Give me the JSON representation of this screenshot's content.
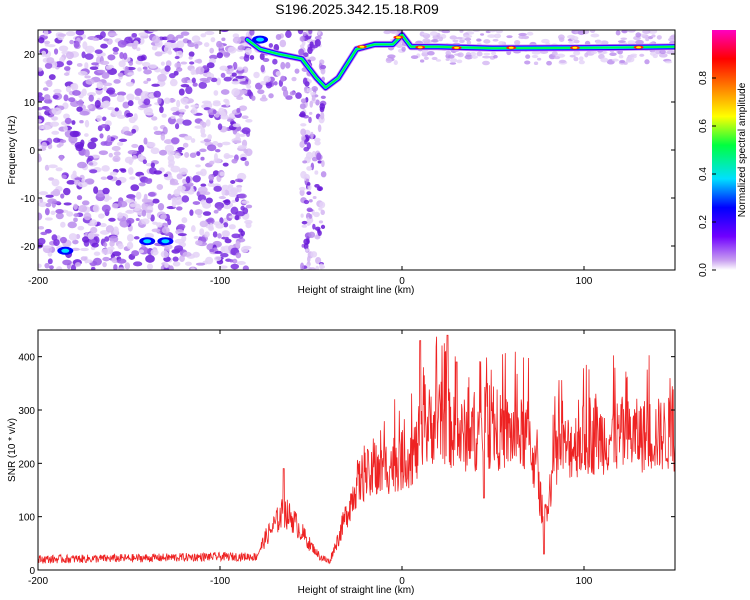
{
  "chart_data": [
    {
      "type": "heatmap",
      "title": "S196.2025.342.15.18.R09",
      "xlabel": "Height of straight line (km)",
      "ylabel": "Frequency (Hz)",
      "xlim": [
        -200,
        150
      ],
      "ylim": [
        -25,
        25
      ],
      "x_ticks": [
        -200,
        -100,
        0,
        100
      ],
      "y_ticks": [
        -20,
        -10,
        0,
        10,
        20
      ],
      "colorbar": {
        "label": "Normalized spectral amplitude",
        "range": [
          0,
          1
        ],
        "ticks": [
          "0.0",
          "0.2",
          "0.4",
          "0.6",
          "0.8"
        ],
        "tick_values": [
          0,
          0.2,
          0.4,
          0.6,
          0.8
        ],
        "colors": [
          "#ffffff",
          "#c9a0f0",
          "#7000ff",
          "#0000ff",
          "#00e0ff",
          "#00ff40",
          "#ffff00",
          "#ff8000",
          "#ff0000",
          "#ff00c0"
        ]
      },
      "ridge": {
        "description_free": true,
        "points": [
          [
            -85,
            23
          ],
          [
            -78,
            21
          ],
          [
            -68,
            20
          ],
          [
            -55,
            19
          ],
          [
            -47,
            15
          ],
          [
            -42,
            13
          ],
          [
            -35,
            15
          ],
          [
            -30,
            18
          ],
          [
            -25,
            21
          ],
          [
            -15,
            22
          ],
          [
            -5,
            22
          ],
          [
            0,
            24
          ],
          [
            5,
            21.5
          ],
          [
            20,
            21.5
          ],
          [
            50,
            21.2
          ],
          [
            100,
            21.3
          ],
          [
            150,
            21.5
          ]
        ]
      },
      "noise_region_x": [
        -200,
        -88
      ],
      "sparse_region_x": [
        -75,
        -45
      ],
      "bright_spots": [
        [
          -185,
          -21
        ],
        [
          -140,
          -19
        ],
        [
          -130,
          -19
        ],
        [
          -78,
          23
        ]
      ],
      "grid": false
    },
    {
      "type": "line",
      "xlabel": "Height of straight line (km)",
      "ylabel": "SNR (10 * v/v)",
      "xlim": [
        -200,
        150
      ],
      "ylim": [
        0,
        450
      ],
      "x_ticks": [
        -200,
        -100,
        0,
        100
      ],
      "y_ticks": [
        0,
        100,
        200,
        300,
        400
      ],
      "series": [
        {
          "color": "#ee2222",
          "x": [
            -200,
            -150,
            -100,
            -80,
            -75,
            -70,
            -65,
            -60,
            -55,
            -50,
            -45,
            -40,
            -35,
            -30,
            -25,
            -20,
            -15,
            -10,
            -5,
            0,
            5,
            10,
            15,
            20,
            25,
            30,
            40,
            50,
            60,
            70,
            78,
            85,
            100,
            120,
            150
          ],
          "y": [
            20,
            22,
            25,
            25,
            60,
            85,
            110,
            95,
            70,
            45,
            25,
            15,
            60,
            110,
            160,
            180,
            170,
            190,
            200,
            205,
            215,
            230,
            270,
            280,
            270,
            250,
            255,
            260,
            255,
            250,
            95,
            220,
            245,
            250,
            255
          ],
          "spikes": [
            [
              -65,
              190
            ],
            [
              10,
              430
            ],
            [
              25,
              440
            ],
            [
              30,
              390
            ],
            [
              45,
              135
            ],
            [
              78,
              30
            ]
          ]
        }
      ],
      "grid": false
    }
  ]
}
